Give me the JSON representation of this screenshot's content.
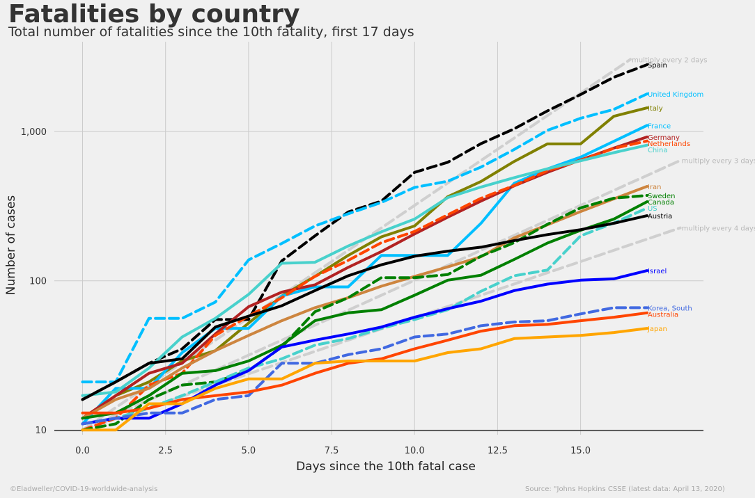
{
  "header": {
    "title": "Fatalities by country",
    "subtitle": "Total number of fatalities since the 10th fatality, first 17 days"
  },
  "footer": {
    "left": "©Eladweller/COVID-19-worldwide-analysis",
    "right": "Source: \"Johns Hopkins CSSE (latest data: April 13, 2020)"
  },
  "colors": {
    "background": "#f0f0f0",
    "grid": "#cbcbcb",
    "baseline": "#333333"
  },
  "chart_data": {
    "type": "line",
    "xlabel": "Days since the 10th fatal case",
    "ylabel": "Number of cases",
    "yscale": "log",
    "xlim": [
      -0.85,
      18.7
    ],
    "ylim": [
      9.3,
      4000
    ],
    "xticks": [
      0,
      2.5,
      5,
      7.5,
      10,
      12.5,
      15
    ],
    "xtick_labels": [
      "0.0",
      "2.5",
      "5.0",
      "7.5",
      "10.0",
      "12.5",
      "15.0"
    ],
    "yticks": [
      10,
      100,
      1000
    ],
    "ytick_labels": [
      "10",
      "100",
      "1,000"
    ],
    "grid": true,
    "reference_lines": [
      {
        "label": "multiply every 2 days",
        "doubling_days": 2,
        "x_end": 16.5,
        "color": "#cfcfcf"
      },
      {
        "label": "multiply every 3 days",
        "doubling_days": 3,
        "x_end": 18,
        "color": "#cfcfcf"
      },
      {
        "label": "multiply every 4 days",
        "doubling_days": 4,
        "x_end": 18,
        "color": "#cfcfcf"
      }
    ],
    "series": [
      {
        "name": "Spain",
        "color": "#000000",
        "dashed": true,
        "label_color": "#000000",
        "values": [
          16,
          21,
          28,
          35,
          55,
          55,
          136,
          200,
          289,
          342,
          533,
          623,
          830,
          1043,
          1375,
          1772,
          2311,
          2808
        ]
      },
      {
        "name": "United Kingdom",
        "color": "#00bfff",
        "dashed": true,
        "label_color": "#00bfff",
        "values": [
          21,
          21,
          56,
          56,
          72,
          138,
          178,
          233,
          281,
          335,
          422,
          465,
          578,
          759,
          1019,
          1228,
          1408,
          1789
        ]
      },
      {
        "name": "Italy",
        "color": "#808000",
        "dashed": false,
        "label_color": "#808000",
        "values": [
          12,
          17,
          21,
          29,
          34,
          52,
          79,
          107,
          148,
          197,
          233,
          366,
          463,
          631,
          827,
          827,
          1266,
          1441
        ]
      },
      {
        "name": "France",
        "color": "#00bfff",
        "dashed": false,
        "label_color": "#00bfff",
        "values": [
          11,
          19,
          19,
          33,
          48,
          48,
          79,
          91,
          91,
          148,
          148,
          148,
          243,
          450,
          562,
          674,
          860,
          1100
        ]
      },
      {
        "name": "Germany",
        "color": "#b22222",
        "dashed": false,
        "label_color": "#b22222",
        "values": [
          12,
          17,
          24,
          28,
          44,
          67,
          84,
          94,
          123,
          157,
          206,
          267,
          342,
          433,
          533,
          645,
          775,
          920
        ]
      },
      {
        "name": "Netherlands",
        "color": "#ff4500",
        "dashed": true,
        "label_color": "#ff4500",
        "values": [
          10,
          12,
          20,
          24,
          43,
          58,
          77,
          107,
          137,
          180,
          214,
          277,
          357,
          435,
          547,
          640,
          772,
          865
        ]
      },
      {
        "name": "China",
        "color": "#48d1cc",
        "dashed": false,
        "label_color": "#48d1cc",
        "values": [
          17,
          18,
          26,
          42,
          56,
          81,
          131,
          133,
          171,
          213,
          259,
          361,
          425,
          491,
          563,
          637,
          722,
          811
        ]
      },
      {
        "name": "Iran",
        "color": "#cd853f",
        "dashed": false,
        "label_color": "#cd853f",
        "values": [
          12,
          16,
          19,
          26,
          34,
          43,
          54,
          66,
          77,
          92,
          107,
          124,
          145,
          194,
          237,
          291,
          354,
          429
        ]
      },
      {
        "name": "Sweden",
        "color": "#008000",
        "dashed": true,
        "label_color": "#008000",
        "values": [
          10,
          11,
          16,
          20,
          21,
          25,
          36,
          62,
          77,
          105,
          105,
          110,
          146,
          180,
          239,
          308,
          358,
          373
        ]
      },
      {
        "name": "Canada",
        "color": "#008000",
        "dashed": false,
        "label_color": "#008000",
        "values": [
          12,
          13,
          17,
          24,
          25,
          29,
          37,
          54,
          61,
          64,
          80,
          101,
          109,
          139,
          179,
          218,
          259,
          339
        ]
      },
      {
        "name": "US",
        "color": "#48d1cc",
        "dashed": true,
        "label_color": "#48d1cc",
        "values": [
          11,
          12,
          14,
          17,
          21,
          26,
          30,
          37,
          41,
          48,
          55,
          64,
          85,
          108,
          118,
          200,
          244,
          307
        ]
      },
      {
        "name": "Austria",
        "color": "#000000",
        "dashed": false,
        "label_color": "#000000",
        "values": [
          16,
          21,
          28,
          30,
          49,
          58,
          68,
          86,
          108,
          128,
          146,
          158,
          168,
          186,
          204,
          220,
          243,
          273
        ]
      },
      {
        "name": "Israel",
        "color": "#0000ff",
        "dashed": false,
        "label_color": "#0000ff",
        "values": [
          11,
          12,
          12,
          15,
          20,
          25,
          36,
          40,
          44,
          49,
          57,
          65,
          73,
          86,
          95,
          101,
          103,
          117
        ]
      },
      {
        "name": "Korea, South",
        "color": "#4169e1",
        "dashed": true,
        "label_color": "#4169e1",
        "values": [
          11,
          12,
          13,
          13,
          16,
          17,
          28,
          28,
          32,
          35,
          42,
          44,
          50,
          53,
          54,
          60,
          66,
          66
        ]
      },
      {
        "name": "Australia",
        "color": "#ff4500",
        "dashed": false,
        "label_color": "#ff4500",
        "values": [
          13,
          13,
          14,
          16,
          17,
          18,
          20,
          24,
          28,
          30,
          35,
          40,
          46,
          50,
          51,
          54,
          57,
          61
        ]
      },
      {
        "name": "Japan",
        "color": "#ffa500",
        "dashed": false,
        "label_color": "#ffa500",
        "values": [
          10,
          10,
          15,
          15,
          19,
          22,
          22,
          28,
          29,
          29,
          29,
          33,
          35,
          41,
          42,
          43,
          45,
          48
        ]
      }
    ]
  }
}
